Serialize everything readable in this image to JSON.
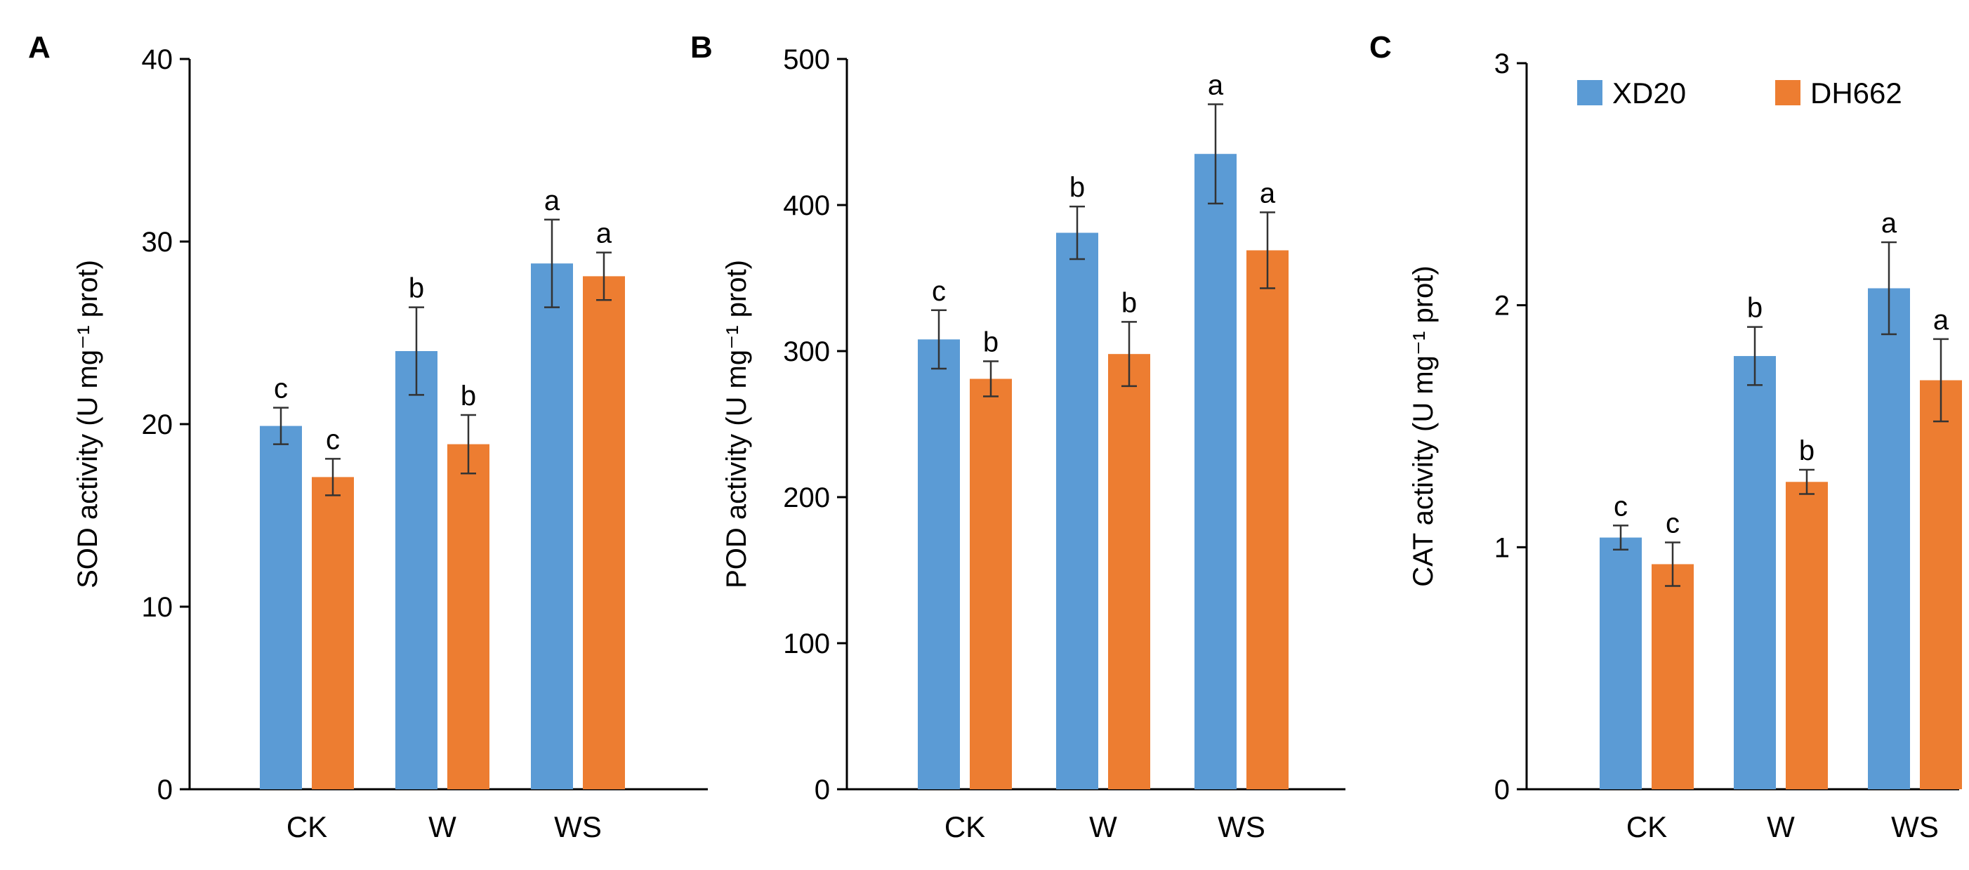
{
  "legend": [
    {
      "name": "XD20",
      "color": "#5b9bd5"
    },
    {
      "name": "DH662",
      "color": "#ed7d31"
    }
  ],
  "chart_data": [
    {
      "type": "bar",
      "panel": "A",
      "ylabel": "SOD activity (U mg⁻¹ prot)",
      "ylim": [
        0,
        40
      ],
      "yticks": [
        0,
        10,
        20,
        30,
        40
      ],
      "categories": [
        "CK",
        "W",
        "WS"
      ],
      "series": [
        {
          "name": "XD20",
          "color": "#5b9bd5",
          "values": [
            19.9,
            24.0,
            28.8
          ],
          "errors": [
            1.0,
            2.4,
            2.4
          ],
          "labels": [
            "c",
            "b",
            "a"
          ]
        },
        {
          "name": "DH662",
          "color": "#ed7d31",
          "values": [
            17.1,
            18.9,
            28.1
          ],
          "errors": [
            1.0,
            1.6,
            1.3
          ],
          "labels": [
            "c",
            "b",
            "a"
          ]
        }
      ],
      "grid": false
    },
    {
      "type": "bar",
      "panel": "B",
      "ylabel": "POD activity (U mg⁻¹ prot)",
      "ylim": [
        0,
        500
      ],
      "yticks": [
        0,
        100,
        200,
        300,
        400,
        500
      ],
      "categories": [
        "CK",
        "W",
        "WS"
      ],
      "series": [
        {
          "name": "XD20",
          "color": "#5b9bd5",
          "values": [
            308,
            381,
            435
          ],
          "errors": [
            20,
            18,
            34
          ],
          "labels": [
            "c",
            "b",
            "a"
          ]
        },
        {
          "name": "DH662",
          "color": "#ed7d31",
          "values": [
            281,
            298,
            369
          ],
          "errors": [
            12,
            22,
            26
          ],
          "labels": [
            "b",
            "b",
            "a"
          ]
        }
      ],
      "grid": false
    },
    {
      "type": "bar",
      "panel": "C",
      "ylabel": "CAT activity (U mg⁻¹ prot)",
      "ylim": [
        0,
        3
      ],
      "yticks": [
        0,
        1,
        2,
        3
      ],
      "categories": [
        "CK",
        "W",
        "WS"
      ],
      "series": [
        {
          "name": "XD20",
          "color": "#5b9bd5",
          "values": [
            1.04,
            1.79,
            2.07
          ],
          "errors": [
            0.05,
            0.12,
            0.19
          ],
          "labels": [
            "c",
            "b",
            "a"
          ]
        },
        {
          "name": "DH662",
          "color": "#ed7d31",
          "values": [
            0.93,
            1.27,
            1.69
          ],
          "errors": [
            0.09,
            0.05,
            0.17
          ],
          "labels": [
            "c",
            "b",
            "a"
          ]
        }
      ],
      "grid": false,
      "legend_position": "top"
    }
  ]
}
